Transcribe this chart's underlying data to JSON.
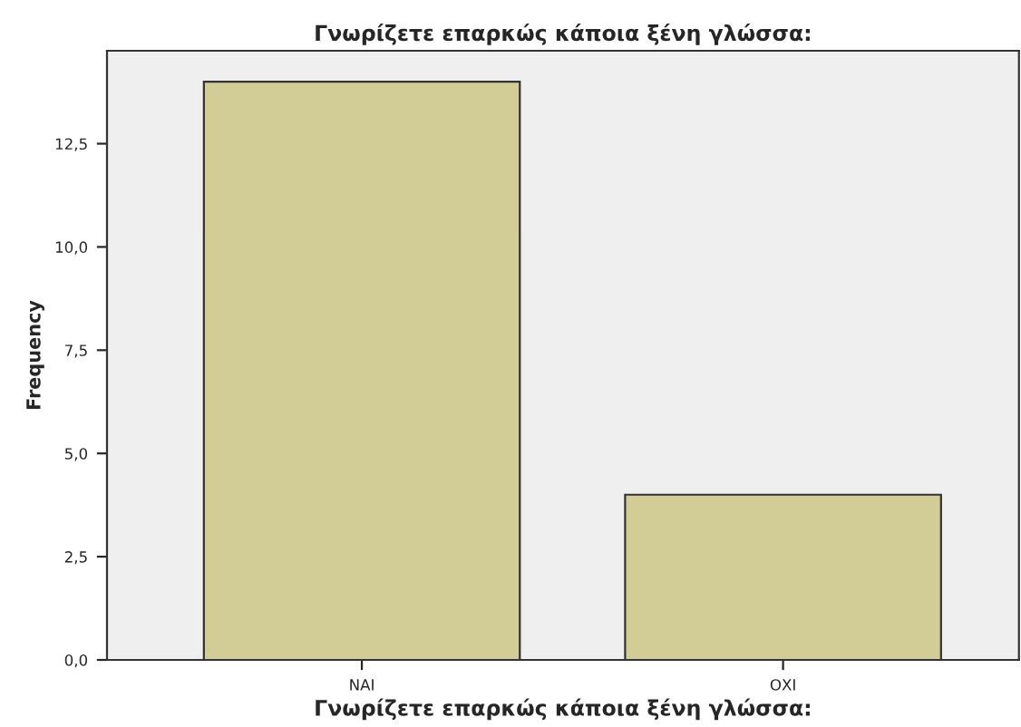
{
  "chart_data": {
    "type": "bar",
    "title": "Γνωρίζετε επαρκώς κάποια ξένη γλώσσα:",
    "xlabel": "Γνωρίζετε επαρκώς κάποια ξένη γλώσσα:",
    "ylabel": "Frequency",
    "categories": [
      "ΝΑΙ",
      "ΟΧΙ"
    ],
    "values": [
      14,
      4
    ],
    "color": "#d2cd96",
    "ylim": [
      0,
      14.75
    ],
    "yticks": [
      {
        "value": 0,
        "label": "0,0"
      },
      {
        "value": 2.5,
        "label": "2,5"
      },
      {
        "value": 5,
        "label": "5,0"
      },
      {
        "value": 7.5,
        "label": "7,5"
      },
      {
        "value": 10,
        "label": "10,0"
      },
      {
        "value": 12.5,
        "label": "12,5"
      }
    ],
    "grid": false,
    "legend": false
  }
}
